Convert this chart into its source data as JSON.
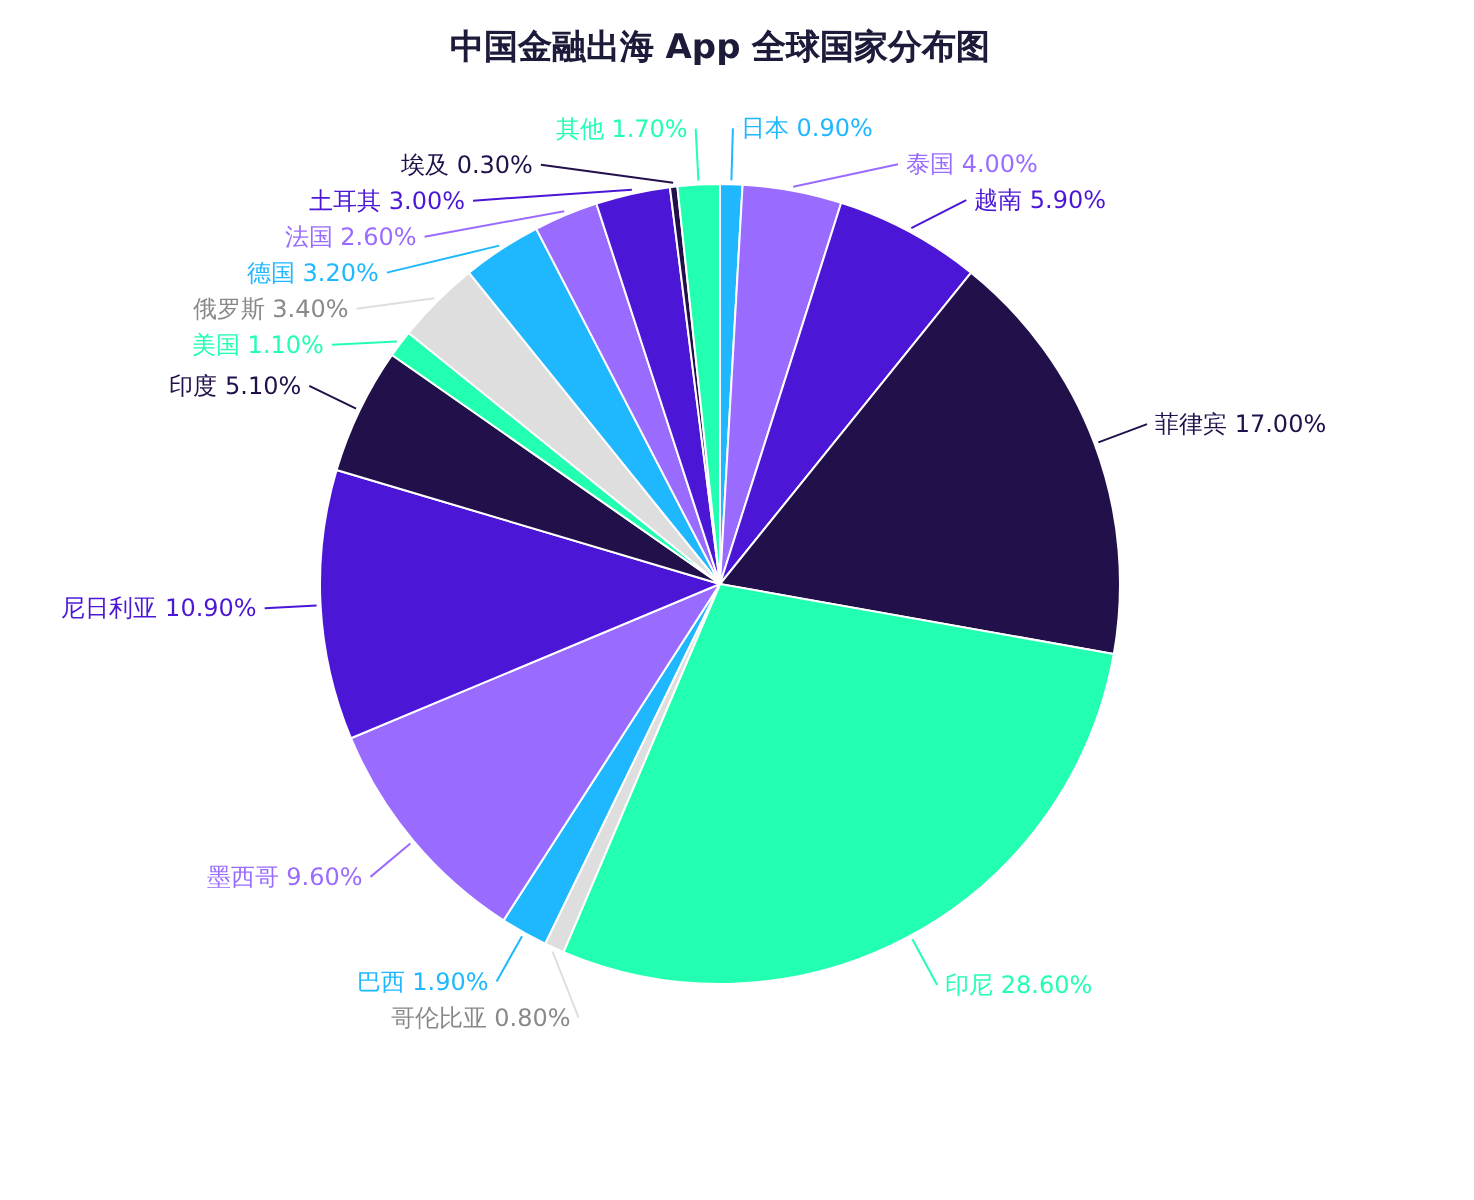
{
  "chart_data": {
    "type": "pie",
    "title": "中国金融出海 App 全球国家分布图",
    "categories": [
      "日本",
      "泰国",
      "越南",
      "菲律宾",
      "印尼",
      "哥伦比亚",
      "巴西",
      "墨西哥",
      "尼日利亚",
      "印度",
      "美国",
      "俄罗斯",
      "德国",
      "法国",
      "土耳其",
      "埃及",
      "其他"
    ],
    "values": [
      0.9,
      4.0,
      5.9,
      17.0,
      28.6,
      0.8,
      1.9,
      9.6,
      10.9,
      5.1,
      1.1,
      3.4,
      3.2,
      2.6,
      3.0,
      0.3,
      1.7
    ],
    "value_labels": [
      "0.90%",
      "4.00%",
      "5.90%",
      "17.00%",
      "28.60%",
      "0.80%",
      "1.90%",
      "9.60%",
      "10.90%",
      "5.10%",
      "1.10%",
      "3.40%",
      "3.20%",
      "2.60%",
      "3.00%",
      "0.30%",
      "1.70%"
    ],
    "colors": [
      "#1fb8ff",
      "#9a6bff",
      "#4b16d6",
      "#22104a",
      "#22ffb0",
      "#dedede",
      "#1fb8ff",
      "#9a6bff",
      "#4b16d6",
      "#22104a",
      "#22ffb0",
      "#dedede",
      "#1fb8ff",
      "#9a6bff",
      "#4b16d6",
      "#22104a",
      "#22ffb0"
    ],
    "legend": false
  }
}
